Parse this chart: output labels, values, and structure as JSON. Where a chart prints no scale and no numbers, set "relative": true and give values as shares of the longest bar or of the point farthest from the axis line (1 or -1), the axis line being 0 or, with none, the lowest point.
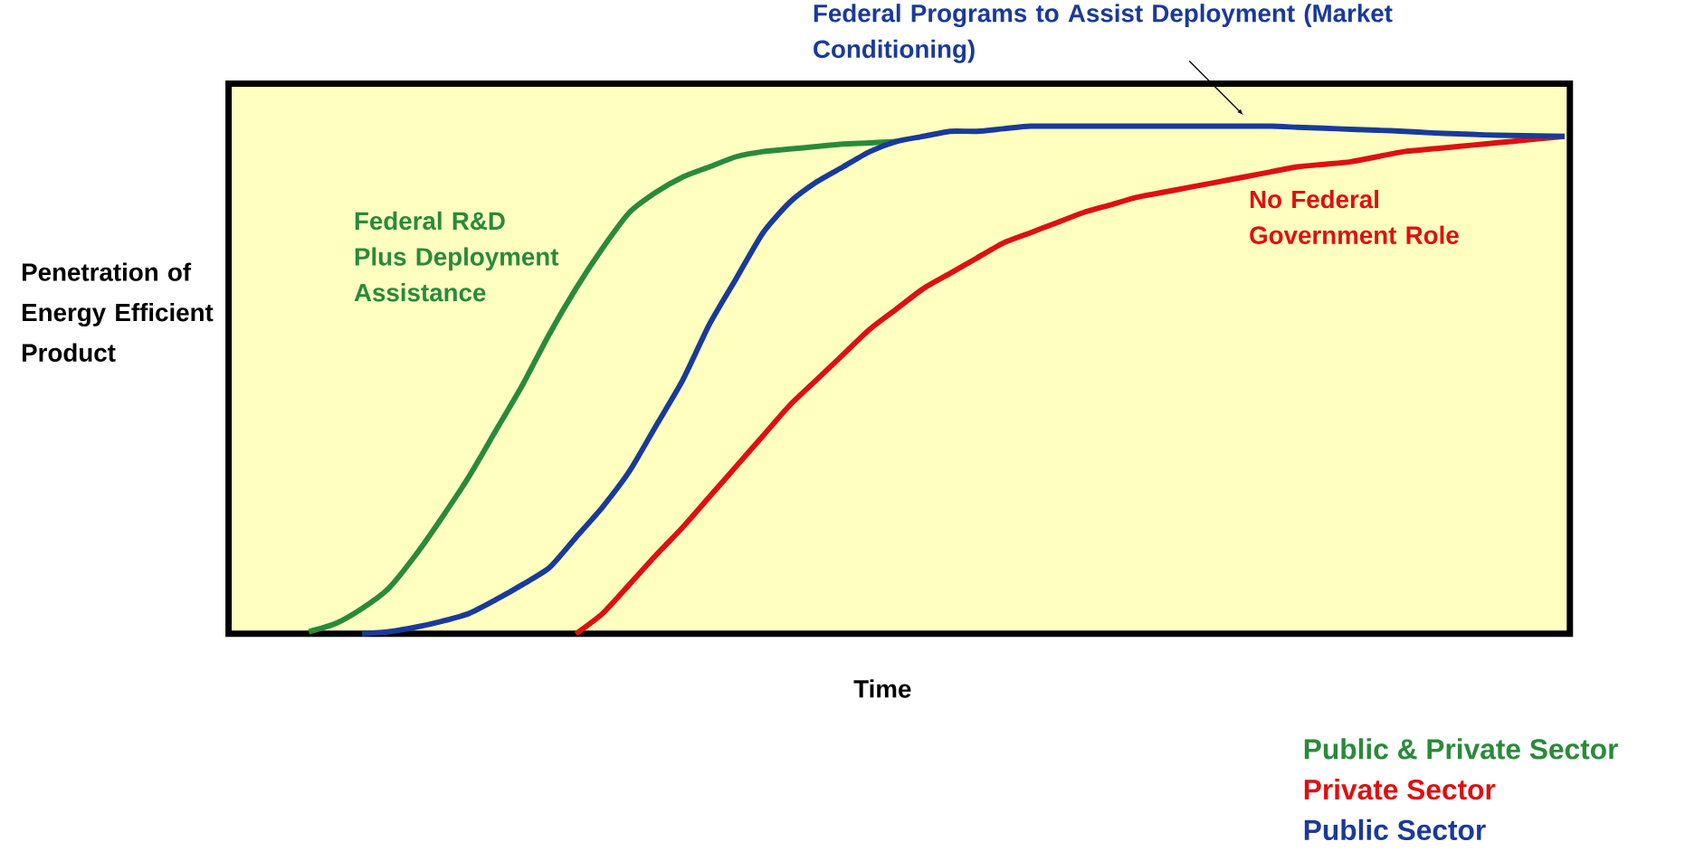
{
  "chart_data": {
    "type": "line",
    "relative": true,
    "xlabel": "Time",
    "ylabel": "Penetration of Energy Efficient Product",
    "categories": [
      null,
      null,
      null,
      null,
      null,
      null,
      null,
      null,
      null,
      null,
      null,
      null,
      null,
      null,
      null,
      null,
      null,
      null,
      null,
      null,
      null,
      null,
      null,
      null,
      null,
      null,
      null,
      null,
      null,
      null,
      null,
      null,
      null,
      null,
      null,
      null,
      null,
      null,
      null,
      null,
      null,
      null,
      null,
      null,
      null,
      null,
      null,
      null,
      null,
      null,
      null
    ],
    "series": [
      {
        "name": "Public & Private Sector",
        "color": "#2a8a3a",
        "values": [
          null,
          null,
          null,
          0.004,
          0.02,
          0.05,
          0.09,
          0.155,
          0.23,
          0.31,
          0.4,
          0.49,
          0.59,
          0.68,
          0.76,
          0.83,
          0.87,
          0.9,
          0.92,
          0.94,
          0.95,
          0.955,
          0.96,
          0.965,
          0.967,
          0.97,
          null,
          null,
          null,
          null,
          null,
          null,
          null,
          null,
          null,
          null,
          null,
          null,
          null,
          null,
          null,
          null,
          null,
          null,
          null,
          null,
          null,
          null,
          null,
          null,
          null
        ]
      },
      {
        "name": "Private Sector",
        "color": "#dd1111",
        "values": [
          null,
          null,
          null,
          null,
          null,
          null,
          null,
          null,
          null,
          null,
          null,
          null,
          null,
          0,
          0.04,
          0.097,
          0.155,
          0.21,
          0.27,
          0.33,
          0.39,
          0.45,
          0.5,
          0.55,
          0.6,
          0.64,
          0.68,
          0.71,
          0.74,
          0.77,
          0.79,
          0.81,
          0.83,
          0.845,
          0.86,
          0.87,
          0.88,
          0.89,
          0.9,
          0.91,
          0.92,
          0.925,
          0.93,
          0.94,
          0.95,
          0.955,
          0.96,
          0.965,
          0.97,
          0.975,
          0.98
        ]
      },
      {
        "name": "Public Sector",
        "color": "#1a3a9a",
        "values": [
          null,
          null,
          null,
          null,
          null,
          0,
          0.004,
          0.013,
          0.025,
          0.04,
          0.067,
          0.097,
          0.13,
          0.19,
          0.25,
          0.32,
          0.41,
          0.5,
          0.61,
          0.7,
          0.79,
          0.85,
          0.89,
          0.92,
          0.95,
          0.97,
          0.98,
          0.99,
          0.99,
          0.995,
          1.0,
          1.0,
          1.0,
          1.0,
          1.0,
          1.0,
          1.0,
          1.0,
          1.0,
          1.0,
          0.998,
          0.996,
          0.994,
          0.992,
          0.99,
          0.987,
          0.985,
          0.983,
          0.982,
          0.981,
          0.98
        ]
      }
    ],
    "annotations": [
      "Federal Programs to Assist Deployment (Market Conditioning)",
      "Federal R&D Plus Deployment Assistance",
      "No Federal Government Role"
    ],
    "legend": "bottom right"
  }
}
